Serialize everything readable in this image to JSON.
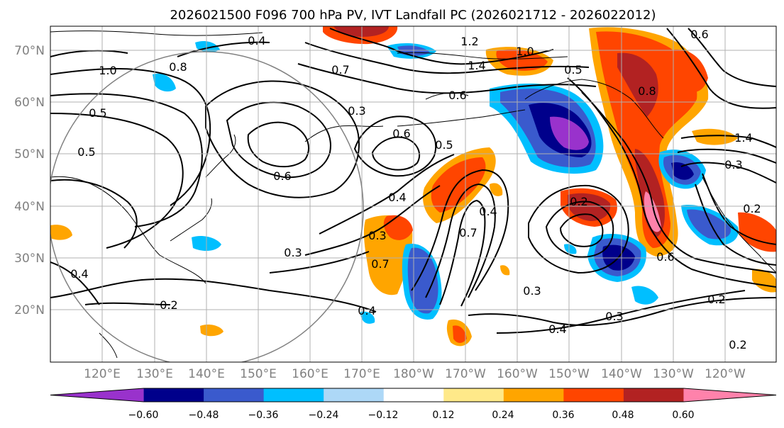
{
  "title": "2026021500 F096 700 hPa PV, IVT Landfall PC (2026021712 - 2026022012)",
  "map": {
    "lat_labels": [
      "70°N",
      "60°N",
      "50°N",
      "40°N",
      "30°N",
      "20°N"
    ],
    "lon_labels": [
      "120°E",
      "130°E",
      "140°E",
      "150°E",
      "160°E",
      "170°E",
      "180°W",
      "170°W",
      "160°W",
      "150°W",
      "140°W",
      "130°W",
      "120°W"
    ],
    "contour_labels": [
      "1.2",
      "1.4",
      "1.0",
      "0.8",
      "0.6",
      "0.5",
      "0.4",
      "0.3",
      "0.2",
      "0.7",
      "0.6",
      "0.5",
      "0.4",
      "0.3",
      "0.2",
      "0.6",
      "0.7",
      "0.3",
      "0.4",
      "0.3",
      "0.6",
      "0.2",
      "0.2",
      "0.4",
      "0.3",
      "0.4",
      "1.4",
      "0.8",
      "1.0",
      "0.6",
      "0.5",
      "0.3",
      "0.2",
      "0.4",
      "0.7",
      "0.5"
    ]
  },
  "colorbar": {
    "ticks": [
      "−0.60",
      "−0.48",
      "−0.36",
      "−0.24",
      "−0.12",
      "0.12",
      "0.24",
      "0.36",
      "0.48",
      "0.60"
    ],
    "colors": [
      "#9932cc",
      "#00008b",
      "#3a5acd",
      "#00bfff",
      "#add8f7",
      "#ffffff",
      "#ffe989",
      "#ffa500",
      "#ff4500",
      "#b22222",
      "#ff82ab"
    ]
  }
}
